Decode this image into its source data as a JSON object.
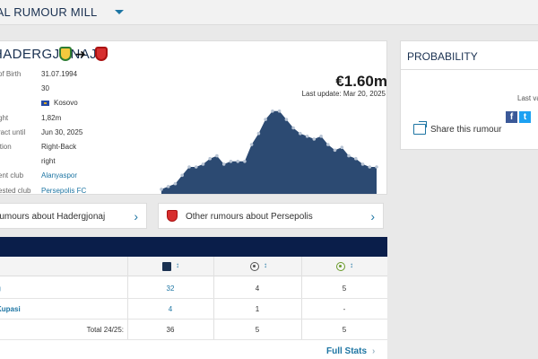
{
  "header": {
    "title": "NAL RUMOUR MILL"
  },
  "player": {
    "name": "HADERGJONAJ",
    "rows": [
      {
        "label": "of Birth",
        "value": "31.07.1994"
      },
      {
        "label": "",
        "value": "30"
      },
      {
        "label": "",
        "value": "Kosovo",
        "flag": true
      },
      {
        "label": "ght",
        "value": "1,82m"
      },
      {
        "label": "ract until",
        "value": "Jun 30, 2025"
      },
      {
        "label": "ition",
        "value": "Right-Back"
      },
      {
        "label": "",
        "value": "right"
      },
      {
        "label": "ent club",
        "value": "Alanyaspor",
        "link": true
      },
      {
        "label": "ested club",
        "value": "Persepolis FC",
        "link": true
      }
    ],
    "market_value": "€1.60m",
    "last_update": "Last update: Mar 20, 2025"
  },
  "chart_data": {
    "type": "area",
    "title": "",
    "xlabel": "",
    "ylabel": "",
    "values": [
      0.05,
      0.1,
      0.15,
      0.3,
      0.45,
      0.45,
      0.5,
      0.6,
      0.65,
      0.5,
      0.55,
      0.55,
      0.55,
      0.85,
      1.05,
      1.3,
      1.45,
      1.45,
      1.3,
      1.15,
      1.05,
      1.0,
      0.95,
      1.0,
      0.85,
      0.75,
      0.8,
      0.65,
      0.6,
      0.5,
      0.45,
      0.45
    ],
    "fill_color": "#2c4a72",
    "point_color": "#b8c4d4"
  },
  "probability": {
    "title": "PROBABILITY",
    "last_text": "Last va",
    "share_text": "Share this rumour",
    "fb": "f",
    "tw": "t"
  },
  "rumour_buttons": {
    "player_label": "rumours about Hadergjonaj",
    "club_label": "Other rumours about Persepolis",
    "chevron": "›"
  },
  "stats": {
    "rows": [
      {
        "competition": "g",
        "apps": "32",
        "goals": "4",
        "assists": "5"
      },
      {
        "competition": "Kupasi",
        "apps": "4",
        "goals": "1",
        "assists": "-"
      }
    ],
    "total": {
      "label": "Total 24/25:",
      "apps": "36",
      "goals": "5",
      "assists": "5"
    },
    "sort_glyph": "↕",
    "full_stats_label": "Full Stats",
    "full_stats_chevron": "›"
  },
  "colors": {
    "brand": "#1a3151",
    "link": "#1d75a3",
    "table_bar": "#0a1e4a"
  }
}
